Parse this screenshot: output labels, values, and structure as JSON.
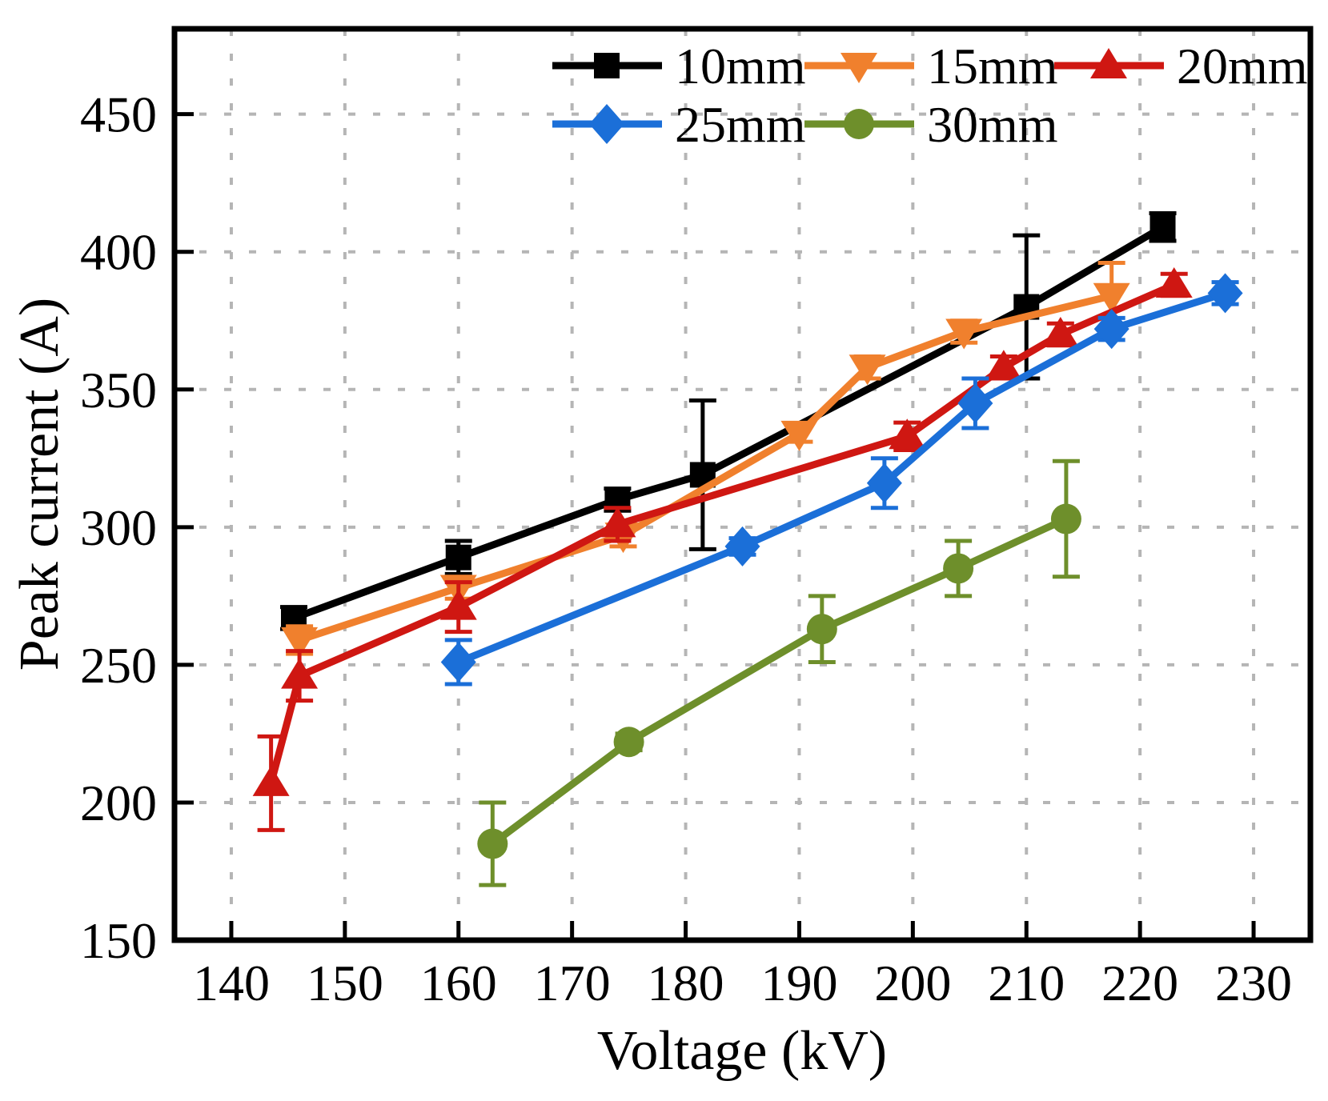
{
  "chart_data": {
    "type": "line",
    "title": "",
    "xlabel": "Voltage (kV)",
    "ylabel": "Peak current (A)",
    "xlim": [
      135,
      235
    ],
    "ylim": [
      150,
      481
    ],
    "x_ticks": [
      140,
      150,
      160,
      170,
      180,
      190,
      200,
      210,
      220,
      230
    ],
    "y_ticks": [
      150,
      200,
      250,
      300,
      350,
      400,
      450
    ],
    "grid": "dashed",
    "grid_color": "#b5b5b5",
    "legend_position": "top-inside",
    "series": [
      {
        "name": "10mm",
        "color": "#000000",
        "marker": "square",
        "points": [
          {
            "x": 145.5,
            "y": 267,
            "err": 4
          },
          {
            "x": 160,
            "y": 289,
            "err": 6
          },
          {
            "x": 174,
            "y": 310,
            "err": 4
          },
          {
            "x": 181.5,
            "y": 319,
            "err": 27
          },
          {
            "x": 210,
            "y": 380,
            "err": 26
          },
          {
            "x": 222,
            "y": 409,
            "err": 5
          }
        ]
      },
      {
        "name": "15mm",
        "color": "#f0802d",
        "marker": "triangle-down",
        "points": [
          {
            "x": 146,
            "y": 259,
            "err": 5
          },
          {
            "x": 160,
            "y": 278,
            "err": 4
          },
          {
            "x": 174.5,
            "y": 297,
            "err": 4
          },
          {
            "x": 190,
            "y": 334,
            "err": 3
          },
          {
            "x": 196,
            "y": 358,
            "err": 4
          },
          {
            "x": 204.5,
            "y": 371,
            "err": 4
          },
          {
            "x": 217.5,
            "y": 384,
            "err": 12
          }
        ]
      },
      {
        "name": "20mm",
        "color": "#cf1712",
        "marker": "triangle-up",
        "points": [
          {
            "x": 143.5,
            "y": 207,
            "err": 17
          },
          {
            "x": 146,
            "y": 246,
            "err": 9
          },
          {
            "x": 160,
            "y": 271,
            "err": 9
          },
          {
            "x": 174,
            "y": 301,
            "err": 6
          },
          {
            "x": 199.5,
            "y": 333,
            "err": 5
          },
          {
            "x": 208,
            "y": 358,
            "err": 4
          },
          {
            "x": 213,
            "y": 370,
            "err": 4
          },
          {
            "x": 223,
            "y": 388,
            "err": 4
          }
        ]
      },
      {
        "name": "25mm",
        "color": "#1b6fd8",
        "marker": "diamond",
        "points": [
          {
            "x": 160,
            "y": 251,
            "err": 8
          },
          {
            "x": 185,
            "y": 293,
            "err": 3
          },
          {
            "x": 197.5,
            "y": 316,
            "err": 9
          },
          {
            "x": 205.5,
            "y": 345,
            "err": 9
          },
          {
            "x": 217.5,
            "y": 372,
            "err": 4
          },
          {
            "x": 227.5,
            "y": 385,
            "err": 4
          }
        ]
      },
      {
        "name": "30mm",
        "color": "#6e8f2b",
        "marker": "circle",
        "points": [
          {
            "x": 163,
            "y": 185,
            "err": 15
          },
          {
            "x": 175,
            "y": 222,
            "err": 3
          },
          {
            "x": 192,
            "y": 263,
            "err": 12
          },
          {
            "x": 204,
            "y": 285,
            "err": 10
          },
          {
            "x": 213.5,
            "y": 303,
            "err": 21
          }
        ]
      }
    ]
  }
}
